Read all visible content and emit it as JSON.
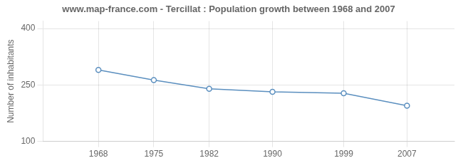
{
  "chart_data": {
    "type": "line",
    "title": "www.map-france.com - Tercillat : Population growth between 1968 and 2007",
    "x": [
      1968,
      1975,
      1982,
      1990,
      1999,
      2007
    ],
    "values": [
      290,
      263,
      240,
      232,
      228,
      195
    ],
    "color": "#5b8fbf",
    "marker": "circle",
    "ylabel": "Number of inhabitants",
    "xlim": [
      1961,
      2013
    ],
    "xticks": [
      1968,
      1975,
      1982,
      1990,
      1999,
      2007
    ],
    "ylim": [
      100,
      420
    ],
    "yticks": [
      100,
      250,
      400
    ],
    "grid": true
  }
}
